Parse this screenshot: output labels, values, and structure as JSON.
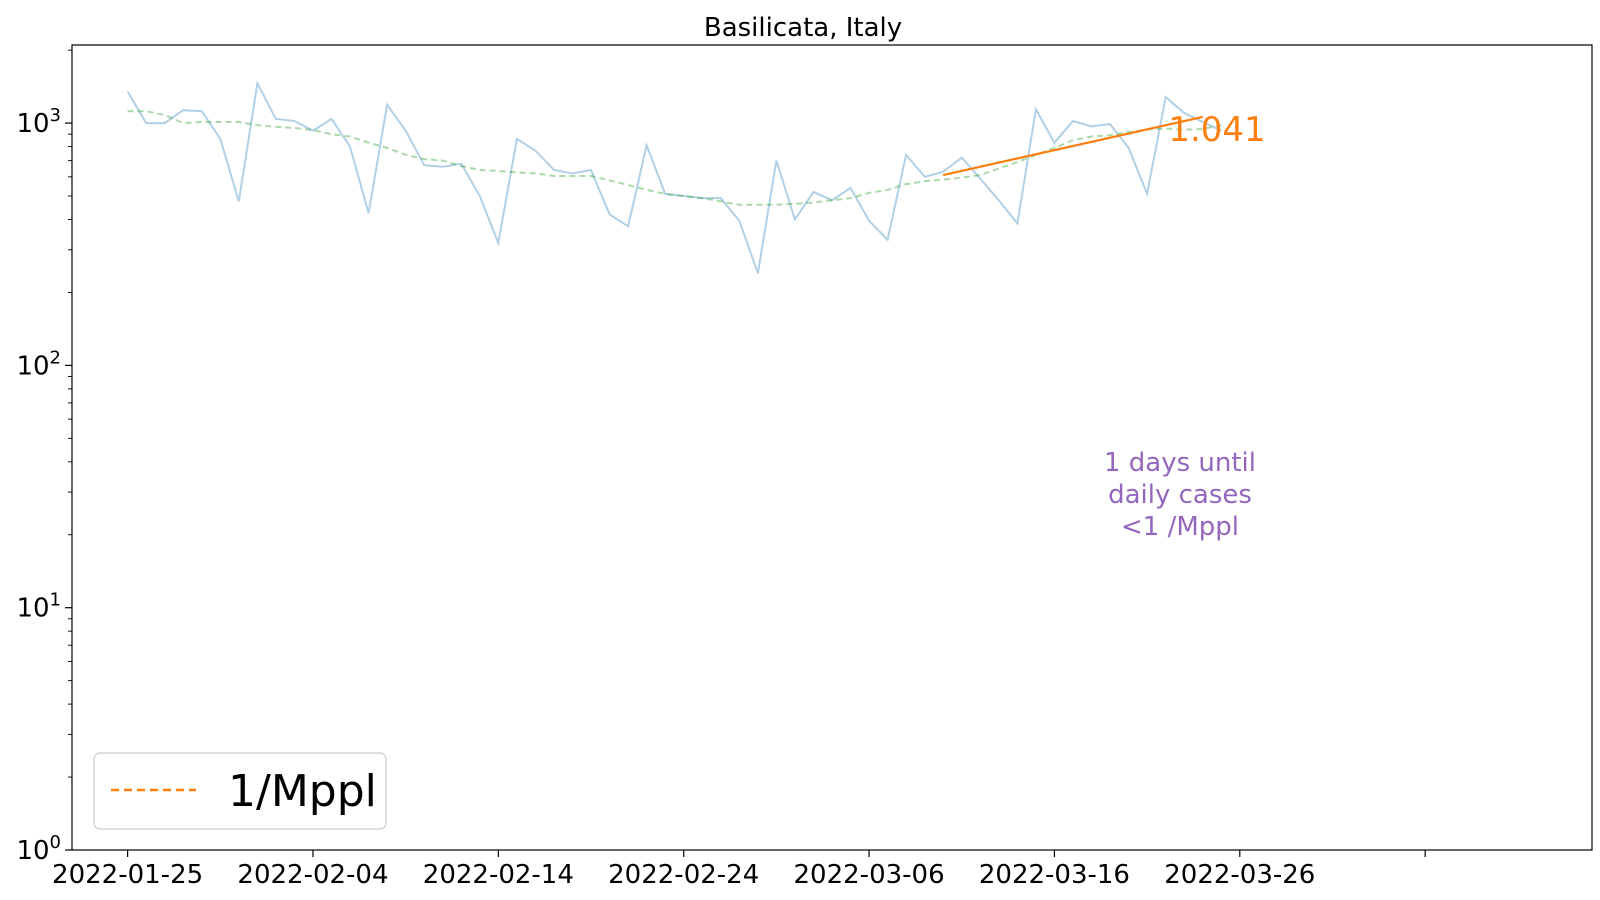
{
  "chart_data": {
    "type": "line",
    "title": "Basilicata, Italy",
    "x_axis": {
      "type": "date",
      "range": [
        "2022-01-22",
        "2022-04-14"
      ],
      "tick_labels": [
        "2022-01-25",
        "2022-02-04",
        "2022-02-14",
        "2022-02-24",
        "2022-03-06",
        "2022-03-16",
        "2022-03-26",
        ""
      ]
    },
    "y_axis": {
      "scale": "log",
      "range": [
        1,
        2100
      ],
      "ticks": [
        {
          "base": "10",
          "exp": "0",
          "value": 1
        },
        {
          "base": "10",
          "exp": "1",
          "value": 10
        },
        {
          "base": "10",
          "exp": "2",
          "value": 100
        },
        {
          "base": "10",
          "exp": "3",
          "value": 1000
        }
      ]
    },
    "series": [
      {
        "style": "daily",
        "color": "#1f77b4",
        "x": [
          "2022-01-25",
          "2022-01-26",
          "2022-01-27",
          "2022-01-28",
          "2022-01-29",
          "2022-01-30",
          "2022-01-31",
          "2022-02-01",
          "2022-02-02",
          "2022-02-03",
          "2022-02-04",
          "2022-02-05",
          "2022-02-06",
          "2022-02-07",
          "2022-02-08",
          "2022-02-09",
          "2022-02-10",
          "2022-02-11",
          "2022-02-12",
          "2022-02-13",
          "2022-02-14",
          "2022-02-15",
          "2022-02-16",
          "2022-02-17",
          "2022-02-18",
          "2022-02-19",
          "2022-02-20",
          "2022-02-21",
          "2022-02-22",
          "2022-02-23",
          "2022-02-24",
          "2022-02-25",
          "2022-02-26",
          "2022-02-27",
          "2022-02-28",
          "2022-03-01",
          "2022-03-02",
          "2022-03-03",
          "2022-03-04",
          "2022-03-05",
          "2022-03-06",
          "2022-03-07",
          "2022-03-08",
          "2022-03-09",
          "2022-03-10",
          "2022-03-11",
          "2022-03-12",
          "2022-03-13",
          "2022-03-14",
          "2022-03-15",
          "2022-03-16",
          "2022-03-17",
          "2022-03-18",
          "2022-03-19",
          "2022-03-20",
          "2022-03-21",
          "2022-03-22",
          "2022-03-23",
          "2022-03-24",
          "2022-03-25"
        ],
        "y": [
          1350,
          1000,
          1000,
          1130,
          1120,
          860,
          475,
          1460,
          1040,
          1020,
          930,
          1040,
          800,
          425,
          1190,
          930,
          670,
          660,
          680,
          500,
          320,
          860,
          770,
          640,
          620,
          640,
          420,
          375,
          810,
          510,
          500,
          490,
          490,
          395,
          240,
          700,
          400,
          520,
          480,
          540,
          395,
          330,
          740,
          600,
          630,
          720,
          590,
          480,
          385,
          1140,
          830,
          1020,
          970,
          990,
          790,
          510,
          1280,
          1100,
          1010,
          930
        ]
      },
      {
        "style": "7-day average",
        "color": "#2ca02c",
        "x": [
          "2022-01-25",
          "2022-01-26",
          "2022-01-27",
          "2022-01-28",
          "2022-01-29",
          "2022-01-30",
          "2022-01-31",
          "2022-02-01",
          "2022-02-02",
          "2022-02-03",
          "2022-02-04",
          "2022-02-05",
          "2022-02-06",
          "2022-02-07",
          "2022-02-08",
          "2022-02-09",
          "2022-02-10",
          "2022-02-11",
          "2022-02-12",
          "2022-02-13",
          "2022-02-14",
          "2022-02-15",
          "2022-02-16",
          "2022-02-17",
          "2022-02-18",
          "2022-02-19",
          "2022-02-20",
          "2022-02-21",
          "2022-02-22",
          "2022-02-23",
          "2022-02-24",
          "2022-02-25",
          "2022-02-26",
          "2022-02-27",
          "2022-02-28",
          "2022-03-01",
          "2022-03-02",
          "2022-03-03",
          "2022-03-04",
          "2022-03-05",
          "2022-03-06",
          "2022-03-07",
          "2022-03-08",
          "2022-03-09",
          "2022-03-10",
          "2022-03-11",
          "2022-03-12",
          "2022-03-13",
          "2022-03-14",
          "2022-03-15",
          "2022-03-16",
          "2022-03-17",
          "2022-03-18",
          "2022-03-19",
          "2022-03-20",
          "2022-03-21",
          "2022-03-22",
          "2022-03-23",
          "2022-03-24",
          "2022-03-25"
        ],
        "y": [
          1120,
          1120,
          1080,
          1000,
          1010,
          1010,
          1010,
          980,
          965,
          955,
          935,
          900,
          880,
          830,
          790,
          740,
          710,
          700,
          665,
          640,
          635,
          625,
          620,
          605,
          605,
          605,
          580,
          555,
          530,
          510,
          500,
          490,
          475,
          460,
          460,
          460,
          465,
          470,
          480,
          490,
          515,
          530,
          560,
          575,
          585,
          595,
          610,
          650,
          690,
          740,
          790,
          850,
          880,
          890,
          920,
          940,
          950,
          940,
          945,
          980
        ]
      },
      {
        "style": "fit",
        "color": "#ff7f0e",
        "x": [
          "2022-03-10",
          "2022-03-24"
        ],
        "y": [
          610,
          1060
        ]
      }
    ],
    "annotations": {
      "growth_rate": "1.041",
      "threshold_text": [
        "1 days until",
        "daily cases",
        "<1 /Mppl"
      ]
    },
    "legend": {
      "position": "lower-left",
      "entries": [
        {
          "label": "1/Mppl",
          "color": "#ff7f0e",
          "style": "dashed"
        }
      ]
    },
    "colors": {
      "daily": "#1f77b4",
      "average": "#2ca02c",
      "fit": "#ff7f0e",
      "annotation": "#9467bd"
    },
    "grid": false
  }
}
